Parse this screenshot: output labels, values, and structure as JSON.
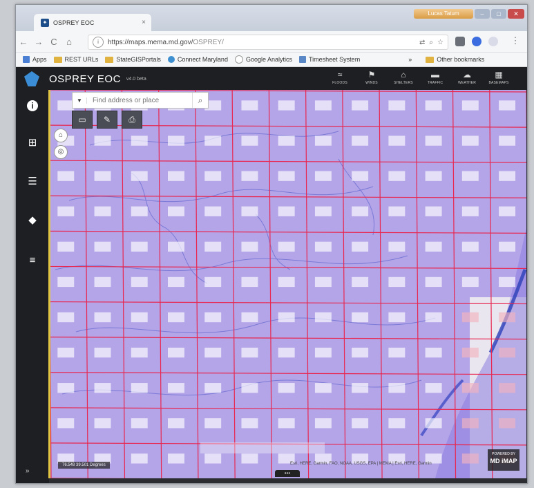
{
  "browser": {
    "tab_title": "OSPREY EOC",
    "tab_close": "×",
    "user_label": "Lucas Tatum",
    "minimize": "–",
    "maximize": "□",
    "close": "✕",
    "back": "←",
    "forward": "→",
    "reload": "C",
    "home": "⌂",
    "url_host": "https://maps.mema.md.gov/",
    "url_path": "OSPREY/",
    "info": "i",
    "more": "⋮",
    "bookmarks": [
      {
        "label": "Apps",
        "kind": "apps"
      },
      {
        "label": "REST URLs",
        "kind": "folder"
      },
      {
        "label": "StateGISPortals",
        "kind": "folder"
      },
      {
        "label": "Connect Maryland",
        "kind": "site"
      },
      {
        "label": "Google Analytics",
        "kind": "site"
      },
      {
        "label": "Timesheet System",
        "kind": "site"
      }
    ],
    "bookmarks_overflow": "»",
    "other_bookmarks": "Other bookmarks"
  },
  "app": {
    "title": "OSPREY EOC",
    "version": "v4.0 beta",
    "header_buttons": [
      {
        "label": "FLOODS",
        "icon": "≈"
      },
      {
        "label": "WINDS",
        "icon": "⚑"
      },
      {
        "label": "SHELTERS",
        "icon": "⌂"
      },
      {
        "label": "TRAFFIC",
        "icon": "▬"
      },
      {
        "label": "WEATHER",
        "icon": "☁"
      },
      {
        "label": "BASEMAPS",
        "icon": "▦"
      }
    ]
  },
  "sidebar": {
    "items": [
      {
        "icon": "i",
        "name": "info"
      },
      {
        "icon": "⊞",
        "name": "layer-list"
      },
      {
        "icon": "☰",
        "name": "legend"
      },
      {
        "icon": "◆",
        "name": "layers"
      },
      {
        "icon": "≡",
        "name": "menu"
      }
    ],
    "collapse": "»"
  },
  "map": {
    "search_placeholder": "Find address or place",
    "search_dropdown": "▼",
    "search_button": "⌕",
    "tools": [
      "▭",
      "✎",
      "⎙"
    ],
    "home_control": "⌂",
    "locate_control": "◎",
    "coords": "76.548 39.501 Degrees",
    "credits": "Esri, HERE, Garmin, FAO, NOAA, USGS, EPA | MEMA | Esri, HERE, Garmin",
    "powered_by": "POWERED BY",
    "powered_brand": "MD iMAP",
    "bottom_handle": "•••"
  }
}
